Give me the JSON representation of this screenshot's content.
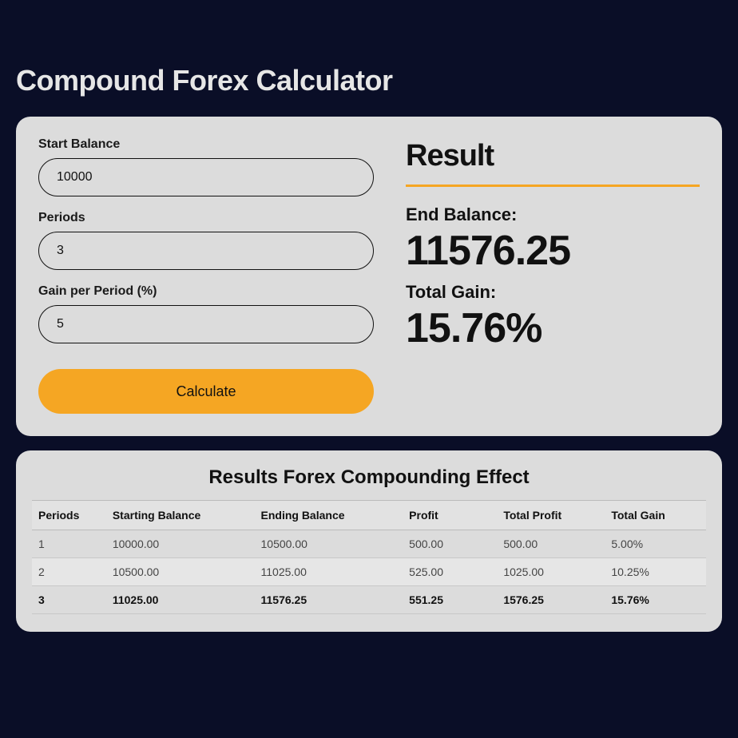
{
  "page": {
    "title": "Compound Forex Calculator",
    "background_color": "#0a0e27",
    "title_color": "#e6e6e6"
  },
  "card": {
    "background_color": "#dcdcdc",
    "border_radius": 18
  },
  "form": {
    "start_balance": {
      "label": "Start Balance",
      "value": "10000"
    },
    "periods": {
      "label": "Periods",
      "value": "3"
    },
    "gain": {
      "label": "Gain per Period (%)",
      "value": "5"
    },
    "button_label": "Calculate",
    "button_color": "#f5a623"
  },
  "result": {
    "title": "Result",
    "underline_color": "#f5a623",
    "end_balance_label": "End Balance:",
    "end_balance_value": "11576.25",
    "total_gain_label": "Total Gain:",
    "total_gain_value": "15.76%"
  },
  "table": {
    "title": "Results Forex Compounding Effect",
    "columns": [
      "Periods",
      "Starting Balance",
      "Ending Balance",
      "Profit",
      "Total Profit",
      "Total Gain"
    ],
    "rows": [
      {
        "cells": [
          "1",
          "10000.00",
          "10500.00",
          "500.00",
          "500.00",
          "5.00%"
        ],
        "bold": false
      },
      {
        "cells": [
          "2",
          "10500.00",
          "11025.00",
          "525.00",
          "1025.00",
          "10.25%"
        ],
        "bold": false
      },
      {
        "cells": [
          "3",
          "11025.00",
          "11576.25",
          "551.25",
          "1576.25",
          "15.76%"
        ],
        "bold": true
      }
    ],
    "header_bg": "#e2e2e2",
    "row_border": "#c8c8c8"
  }
}
